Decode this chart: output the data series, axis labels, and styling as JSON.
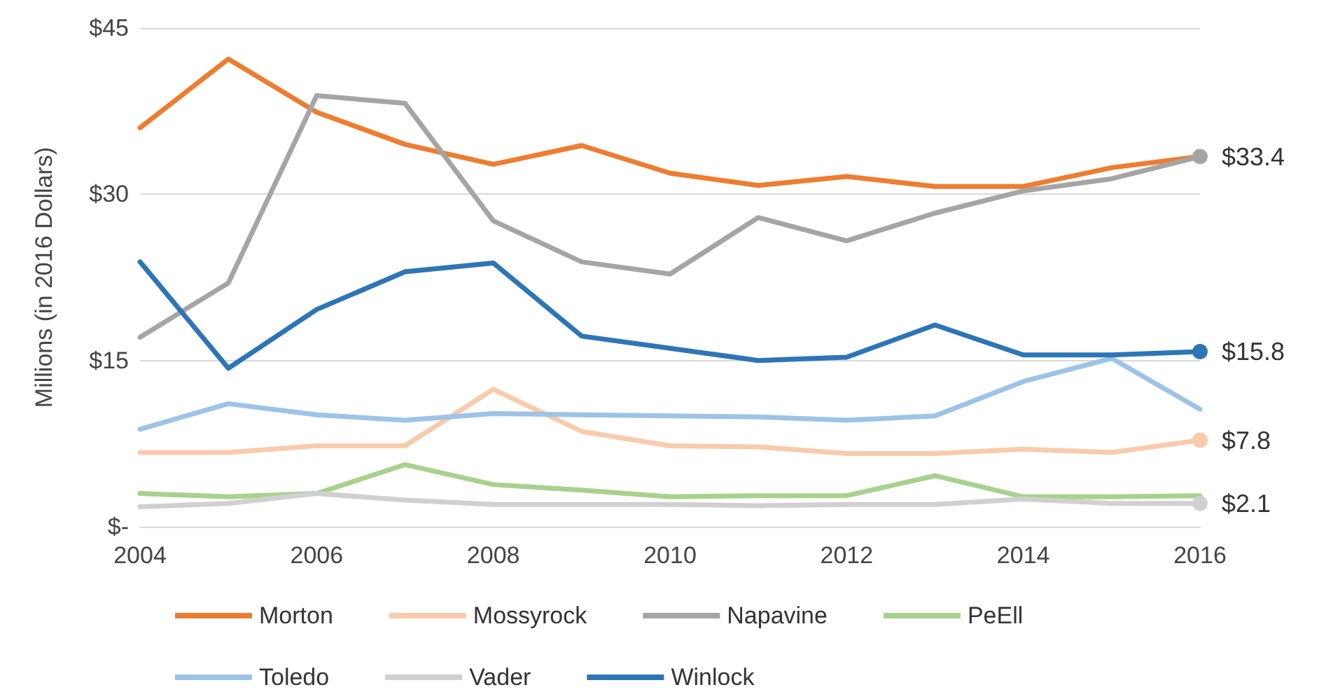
{
  "chart_data": {
    "type": "line",
    "ylabel": "Millions (in 2016 Dollars)",
    "categories": [
      "2004",
      null,
      "2006",
      null,
      "2008",
      null,
      "2010",
      null,
      "2012",
      null,
      "2014",
      null,
      "2016"
    ],
    "ylim": [
      0,
      45
    ],
    "yticks": [
      {
        "value": 0,
        "label": "$-"
      },
      {
        "value": 15,
        "label": "$15"
      },
      {
        "value": 30,
        "label": "$30"
      },
      {
        "value": 45,
        "label": "$45"
      }
    ],
    "grid": "y",
    "legend": "bottom",
    "line_style": "solid",
    "series": [
      {
        "name": "Morton",
        "color": "#ed7d31",
        "values": [
          36.0,
          42.2,
          37.4,
          34.5,
          32.7,
          34.4,
          31.9,
          30.8,
          31.6,
          30.7,
          30.7,
          32.4,
          33.4
        ]
      },
      {
        "name": "Mossyrock",
        "color": "#f8cbad",
        "values": [
          6.7,
          6.7,
          7.3,
          7.3,
          12.4,
          8.6,
          7.3,
          7.2,
          6.6,
          6.6,
          7.0,
          6.7,
          7.8
        ],
        "value_labels": [
          null,
          null,
          null,
          null,
          null,
          null,
          null,
          null,
          null,
          null,
          null,
          null,
          "$7.8"
        ]
      },
      {
        "name": "Napavine",
        "color": "#a5a5a5",
        "values": [
          17.1,
          22.0,
          38.9,
          38.2,
          27.6,
          23.9,
          22.8,
          27.9,
          25.8,
          28.3,
          30.3,
          31.4,
          33.4
        ],
        "value_labels": [
          null,
          null,
          null,
          null,
          null,
          null,
          null,
          null,
          null,
          null,
          null,
          null,
          "$33.4"
        ]
      },
      {
        "name": "PeEll",
        "color": "#a9d18e",
        "values": [
          3.0,
          2.7,
          3.0,
          5.6,
          3.8,
          3.3,
          2.7,
          2.8,
          2.8,
          4.6,
          2.7,
          2.7,
          2.8
        ]
      },
      {
        "name": "Toledo",
        "color": "#9dc3e6",
        "values": [
          8.8,
          11.1,
          10.1,
          9.6,
          10.2,
          10.1,
          10.0,
          9.9,
          9.6,
          10.0,
          13.1,
          15.2,
          10.6
        ]
      },
      {
        "name": "Vader",
        "color": "#d0d0d0",
        "values": [
          1.8,
          2.1,
          3.0,
          2.4,
          2.0,
          2.0,
          2.0,
          1.9,
          2.0,
          2.0,
          2.5,
          2.1,
          2.1
        ],
        "value_labels": [
          null,
          null,
          null,
          null,
          null,
          null,
          null,
          null,
          null,
          null,
          null,
          null,
          "$2.1"
        ]
      },
      {
        "name": "Winlock",
        "color": "#2e75b6",
        "values": [
          23.9,
          14.3,
          19.6,
          23.0,
          23.8,
          17.2,
          16.1,
          15.0,
          15.3,
          18.2,
          15.5,
          15.5,
          15.8
        ],
        "value_labels": [
          null,
          null,
          null,
          null,
          null,
          null,
          null,
          null,
          null,
          null,
          null,
          null,
          "$15.8"
        ]
      }
    ]
  }
}
